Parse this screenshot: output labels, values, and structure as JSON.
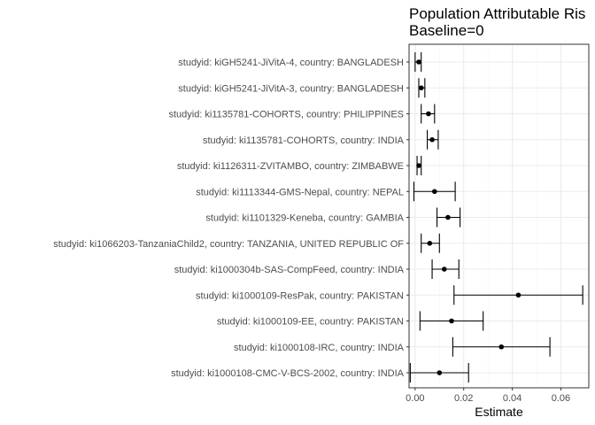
{
  "chart_data": {
    "type": "forest",
    "title": "Population Attributable Ris",
    "subtitle": "Baseline=0",
    "xlabel": "Estimate",
    "ylabel": "",
    "xlim": [
      -0.0025,
      0.0715
    ],
    "x_ticks": [
      0.0,
      0.02,
      0.04,
      0.06
    ],
    "x_tick_labels": [
      "0.00",
      "0.02",
      "0.04",
      "0.06"
    ],
    "grid": true,
    "colors": {
      "panel_border": "#333333",
      "grid_major": "#ebebeb",
      "grid_minor": "#f5f5f5",
      "mark": "#000000",
      "tick_text": "#4d4d4d"
    },
    "studies": [
      {
        "label": "studyid: kiGH5241-JiVitA-4, country: BANGLADESH",
        "estimate": 0.0015,
        "lower": 0.0,
        "upper": 0.0025
      },
      {
        "label": "studyid: kiGH5241-JiVitA-3, country: BANGLADESH",
        "estimate": 0.0025,
        "lower": 0.0015,
        "upper": 0.004
      },
      {
        "label": "studyid: ki1135781-COHORTS, country: PHILIPPINES",
        "estimate": 0.0055,
        "lower": 0.0025,
        "upper": 0.008
      },
      {
        "label": "studyid: ki1135781-COHORTS, country: INDIA",
        "estimate": 0.007,
        "lower": 0.005,
        "upper": 0.0095
      },
      {
        "label": "studyid: ki1126311-ZVITAMBO, country: ZIMBABWE",
        "estimate": 0.0015,
        "lower": 0.0008,
        "upper": 0.0025
      },
      {
        "label": "studyid: ki1113344-GMS-Nepal, country: NEPAL",
        "estimate": 0.008,
        "lower": -0.0005,
        "upper": 0.0165
      },
      {
        "label": "studyid: ki1101329-Keneba, country: GAMBIA",
        "estimate": 0.0135,
        "lower": 0.009,
        "upper": 0.0185
      },
      {
        "label": "studyid: ki1066203-TanzaniaChild2, country: TANZANIA, UNITED REPUBLIC OF",
        "estimate": 0.006,
        "lower": 0.0025,
        "upper": 0.01
      },
      {
        "label": "studyid: ki1000304b-SAS-CompFeed, country: INDIA",
        "estimate": 0.012,
        "lower": 0.007,
        "upper": 0.018
      },
      {
        "label": "studyid: ki1000109-ResPak, country: PAKISTAN",
        "estimate": 0.0425,
        "lower": 0.016,
        "upper": 0.069
      },
      {
        "label": "studyid: ki1000109-EE, country: PAKISTAN",
        "estimate": 0.015,
        "lower": 0.002,
        "upper": 0.028
      },
      {
        "label": "studyid: ki1000108-IRC, country: INDIA",
        "estimate": 0.0355,
        "lower": 0.0155,
        "upper": 0.0555
      },
      {
        "label": "studyid: ki1000108-CMC-V-BCS-2002, country: INDIA",
        "estimate": 0.01,
        "lower": -0.002,
        "upper": 0.022
      }
    ]
  }
}
